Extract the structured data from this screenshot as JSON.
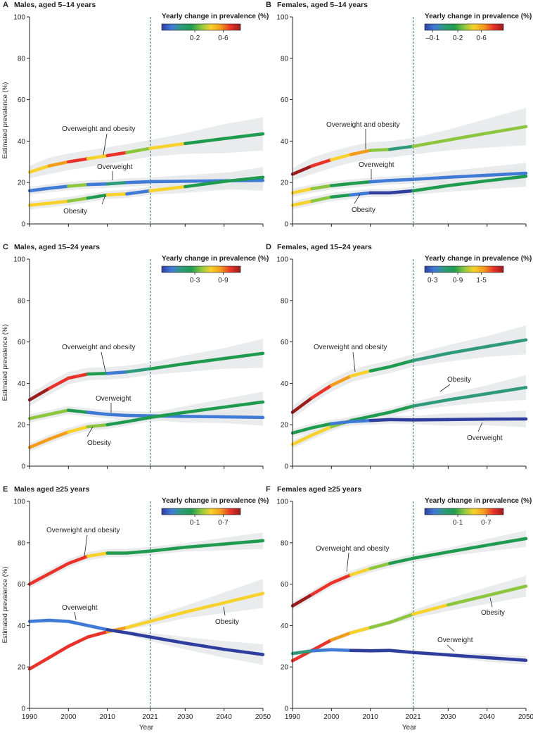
{
  "colors": {
    "band": "#e6e7e9",
    "axis": "#231f20",
    "dashed": "#1f6f6a",
    "scale": [
      "#2f3e9e",
      "#3f7ad6",
      "#2f9a7a",
      "#1f9b50",
      "#8cc63f",
      "#f7d22c",
      "#f39c1c",
      "#e8322a",
      "#9a1c1c"
    ]
  },
  "shared": {
    "ylabel": "Estimated prevalence (%)",
    "xlabel": "Year",
    "ylim": [
      0,
      100
    ],
    "xlim": [
      1990,
      2050
    ],
    "yticks": [
      "0",
      "20",
      "40",
      "60",
      "80",
      "100"
    ],
    "xticks": [
      "1990",
      "2000",
      "2010",
      "2021",
      "2030",
      "2040",
      "2050"
    ],
    "projection_start": 2021,
    "colorbar_title": "Yearly change in prevalence (%)"
  },
  "chart_data": [
    {
      "type": "line",
      "label": "A",
      "title": "Males, aged 5–14 years",
      "colorbar_ticks": [
        "0·2",
        "0·6"
      ],
      "series": [
        {
          "name": "Overweight and obesity",
          "x": [
            1990,
            1995,
            2000,
            2005,
            2010,
            2015,
            2021,
            2030,
            2040,
            2050
          ],
          "y": [
            25,
            28,
            30,
            31.5,
            33,
            34.5,
            36.5,
            38.8,
            41.2,
            43.5
          ],
          "band": [
            3,
            4,
            4,
            4,
            4,
            4,
            4,
            5,
            7,
            8
          ],
          "colors": [
            5,
            6,
            7,
            5,
            7,
            4,
            5,
            3,
            3,
            3
          ]
        },
        {
          "name": "Overweight",
          "x": [
            1990,
            1995,
            2000,
            2005,
            2010,
            2015,
            2021,
            2030,
            2040,
            2050
          ],
          "y": [
            16,
            17.2,
            18.2,
            19,
            19.3,
            20,
            20.4,
            20.6,
            20.8,
            21
          ],
          "band": [
            2,
            2,
            2,
            2,
            2,
            2,
            2,
            3,
            4,
            5
          ],
          "colors": [
            1,
            1,
            4,
            1,
            2,
            1,
            1,
            1,
            1,
            1
          ]
        },
        {
          "name": "Obesity",
          "x": [
            1990,
            1995,
            2000,
            2005,
            2010,
            2015,
            2021,
            2030,
            2040,
            2050
          ],
          "y": [
            9,
            10,
            11,
            12.5,
            14,
            14.5,
            16,
            18,
            20.5,
            22.5
          ],
          "band": [
            2,
            2,
            2,
            2,
            2,
            2,
            2,
            3,
            4,
            5
          ],
          "colors": [
            5,
            5,
            4,
            3,
            5,
            1,
            5,
            3,
            3,
            3
          ]
        }
      ],
      "annotations": [
        "Overweight and obesity",
        "Overweight",
        "Obesity"
      ]
    },
    {
      "type": "line",
      "label": "B",
      "title": "Females, aged 5–14 years",
      "colorbar_ticks": [
        "–0·1",
        "0·2",
        "0·6"
      ],
      "series": [
        {
          "name": "Overweight and obesity",
          "x": [
            1990,
            1995,
            2000,
            2005,
            2010,
            2015,
            2021,
            2030,
            2040,
            2050
          ],
          "y": [
            24,
            28,
            31,
            33.5,
            35.5,
            36,
            37.5,
            40.5,
            43.8,
            47
          ],
          "band": [
            3,
            4,
            4,
            4,
            4,
            4,
            4,
            5,
            7,
            9
          ],
          "colors": [
            8,
            7,
            5,
            6,
            4,
            2,
            4,
            4,
            4,
            4
          ]
        },
        {
          "name": "Overweight",
          "x": [
            1990,
            1995,
            2000,
            2005,
            2010,
            2015,
            2021,
            2030,
            2040,
            2050
          ],
          "y": [
            15,
            17,
            18.5,
            19.5,
            20.3,
            21,
            21.5,
            22.5,
            23.5,
            24.5
          ],
          "band": [
            2,
            2,
            2,
            2,
            2,
            2,
            2,
            3,
            4,
            5
          ],
          "colors": [
            5,
            4,
            3,
            3,
            1,
            1,
            1,
            1,
            1,
            1
          ]
        },
        {
          "name": "Obesity",
          "x": [
            1990,
            1995,
            2000,
            2005,
            2010,
            2015,
            2021,
            2030,
            2040,
            2050
          ],
          "y": [
            9,
            11,
            13,
            14,
            15,
            15,
            16,
            18.5,
            20.8,
            23
          ],
          "band": [
            2,
            2,
            2,
            2,
            2,
            2,
            2,
            3,
            4,
            5
          ],
          "colors": [
            5,
            4,
            3,
            1,
            0,
            0,
            3,
            3,
            3,
            3
          ]
        }
      ],
      "annotations": [
        "Overweight and obesity",
        "Overweight",
        "Obesity"
      ]
    },
    {
      "type": "line",
      "label": "C",
      "title": "Males, aged 15–24 years",
      "colorbar_ticks": [
        "0·3",
        "0·9"
      ],
      "series": [
        {
          "name": "Overweight and obesity",
          "x": [
            1990,
            1995,
            2000,
            2005,
            2010,
            2015,
            2021,
            2030,
            2040,
            2050
          ],
          "y": [
            32,
            37.5,
            42.5,
            44.5,
            44.8,
            45.5,
            47,
            49.5,
            52,
            54.5
          ],
          "band": [
            3,
            3,
            3,
            3,
            3,
            3,
            3,
            4,
            5,
            7
          ],
          "colors": [
            8,
            7,
            7,
            3,
            1,
            2,
            3,
            3,
            3,
            3
          ]
        },
        {
          "name": "Overweight",
          "x": [
            1990,
            1995,
            2000,
            2005,
            2010,
            2015,
            2021,
            2030,
            2040,
            2050
          ],
          "y": [
            23,
            25,
            27,
            26,
            25,
            24.5,
            24.3,
            24,
            23.8,
            23.5
          ],
          "band": [
            2,
            2,
            2,
            2,
            2,
            2,
            2,
            3,
            3,
            4
          ],
          "colors": [
            4,
            4,
            3,
            1,
            1,
            1,
            1,
            1,
            1,
            1
          ]
        },
        {
          "name": "Obesity",
          "x": [
            1990,
            1995,
            2000,
            2005,
            2010,
            2015,
            2021,
            2030,
            2040,
            2050
          ],
          "y": [
            9,
            13,
            16.5,
            19,
            20,
            21.5,
            23.5,
            26,
            28.5,
            31
          ],
          "band": [
            2,
            2,
            2,
            2,
            2,
            2,
            2,
            3,
            4,
            5
          ],
          "colors": [
            6,
            6,
            5,
            4,
            3,
            3,
            3,
            3,
            3,
            3
          ]
        }
      ],
      "annotations": [
        "Overweight and obesity",
        "Overweight",
        "Obesity"
      ]
    },
    {
      "type": "line",
      "label": "D",
      "title": "Females, aged 15–24 years",
      "colorbar_ticks": [
        "0·3",
        "0·9",
        "1·5"
      ],
      "series": [
        {
          "name": "Overweight and obesity",
          "x": [
            1990,
            1995,
            2000,
            2005,
            2010,
            2015,
            2021,
            2030,
            2040,
            2050
          ],
          "y": [
            26,
            33,
            39,
            43.5,
            46,
            48,
            51,
            54.5,
            57.8,
            61
          ],
          "band": [
            3,
            3,
            3,
            3,
            3,
            3,
            3,
            4,
            5,
            7
          ],
          "colors": [
            8,
            7,
            6,
            5,
            3,
            3,
            2,
            2,
            2,
            2
          ]
        },
        {
          "name": "Obesity",
          "x": [
            1990,
            1995,
            2000,
            2005,
            2010,
            2015,
            2021,
            2030,
            2040,
            2050
          ],
          "y": [
            10.5,
            15,
            19,
            22,
            24,
            26,
            29,
            32,
            35,
            38
          ],
          "band": [
            2,
            2,
            2,
            2,
            2,
            2,
            2,
            3,
            4,
            6
          ],
          "colors": [
            5,
            5,
            4,
            3,
            3,
            3,
            2,
            2,
            2,
            2
          ]
        },
        {
          "name": "Overweight",
          "x": [
            1990,
            1995,
            2000,
            2005,
            2010,
            2015,
            2021,
            2030,
            2040,
            2050
          ],
          "y": [
            16,
            18.5,
            20.5,
            21.5,
            22,
            22.5,
            22.3,
            22.5,
            22.7,
            22.8
          ],
          "band": [
            2,
            2,
            2,
            2,
            2,
            2,
            2,
            3,
            3,
            4
          ],
          "colors": [
            3,
            3,
            1,
            1,
            0,
            0,
            0,
            0,
            0,
            0
          ]
        }
      ],
      "annotations": [
        "Overweight and obesity",
        "Obesity",
        "Overweight"
      ]
    },
    {
      "type": "line",
      "label": "E",
      "title": "Males aged ≥25 years",
      "colorbar_ticks": [
        "0·1",
        "0·7"
      ],
      "series": [
        {
          "name": "Overweight and obesity",
          "x": [
            1990,
            1995,
            2000,
            2005,
            2010,
            2015,
            2021,
            2030,
            2040,
            2050
          ],
          "y": [
            60,
            65,
            70,
            73.5,
            75,
            75,
            76,
            77.8,
            79.4,
            81
          ],
          "band": [
            2,
            2,
            2,
            2,
            2,
            2,
            2,
            2,
            3,
            4
          ],
          "colors": [
            7,
            7,
            7,
            5,
            3,
            3,
            3,
            3,
            3,
            3
          ]
        },
        {
          "name": "Obesity",
          "x": [
            1990,
            1995,
            2000,
            2005,
            2010,
            2015,
            2021,
            2030,
            2040,
            2050
          ],
          "y": [
            19,
            24.5,
            30,
            34.5,
            37,
            39,
            42,
            46.5,
            51,
            55.5
          ],
          "band": [
            1,
            1,
            1,
            1,
            1,
            1,
            2,
            3,
            5,
            7
          ],
          "colors": [
            7,
            7,
            7,
            7,
            6,
            5,
            5,
            5,
            5,
            5
          ]
        },
        {
          "name": "Overweight",
          "x": [
            1990,
            1995,
            2000,
            2005,
            2010,
            2015,
            2021,
            2030,
            2040,
            2050
          ],
          "y": [
            42,
            42.5,
            42,
            40,
            38,
            36.5,
            34.5,
            31.5,
            28.5,
            26
          ],
          "band": [
            1,
            1,
            1,
            1,
            1,
            1,
            2,
            3,
            4,
            5
          ],
          "colors": [
            1,
            1,
            1,
            1,
            0,
            0,
            0,
            0,
            0,
            0
          ]
        }
      ],
      "annotations": [
        "Overweight and obesity",
        "Overweight",
        "Obesity"
      ]
    },
    {
      "type": "line",
      "label": "F",
      "title": "Females aged ≥25 years",
      "colorbar_ticks": [
        "0·1",
        "0·7"
      ],
      "series": [
        {
          "name": "Overweight and obesity",
          "x": [
            1990,
            1995,
            2000,
            2005,
            2010,
            2015,
            2021,
            2030,
            2040,
            2050
          ],
          "y": [
            49.5,
            55,
            60.5,
            64.5,
            67.5,
            70,
            72.5,
            75.5,
            78.8,
            82
          ],
          "band": [
            2,
            2,
            2,
            2,
            2,
            2,
            2,
            2,
            3,
            4
          ],
          "colors": [
            8,
            7,
            7,
            5,
            4,
            3,
            3,
            3,
            3,
            3
          ]
        },
        {
          "name": "Obesity",
          "x": [
            1990,
            1995,
            2000,
            2005,
            2010,
            2015,
            2021,
            2030,
            2040,
            2050
          ],
          "y": [
            23,
            28,
            33,
            36.5,
            39,
            41.5,
            45.5,
            50,
            54.5,
            59
          ],
          "band": [
            1,
            1,
            1,
            1,
            1,
            1,
            2,
            3,
            4,
            5
          ],
          "colors": [
            7,
            7,
            6,
            5,
            4,
            4,
            5,
            4,
            4,
            4
          ]
        },
        {
          "name": "Overweight",
          "x": [
            1990,
            1995,
            2000,
            2005,
            2010,
            2015,
            2021,
            2030,
            2040,
            2050
          ],
          "y": [
            26.5,
            27.8,
            28.3,
            28,
            27.8,
            28,
            27,
            25.8,
            24.5,
            23.2
          ],
          "band": [
            1,
            1,
            1,
            1,
            1,
            1,
            1,
            1,
            2,
            2
          ],
          "colors": [
            2,
            1,
            1,
            0,
            0,
            0,
            0,
            0,
            0,
            0
          ]
        }
      ],
      "annotations": [
        "Overweight and obesity",
        "Obesity",
        "Overweight"
      ]
    }
  ]
}
